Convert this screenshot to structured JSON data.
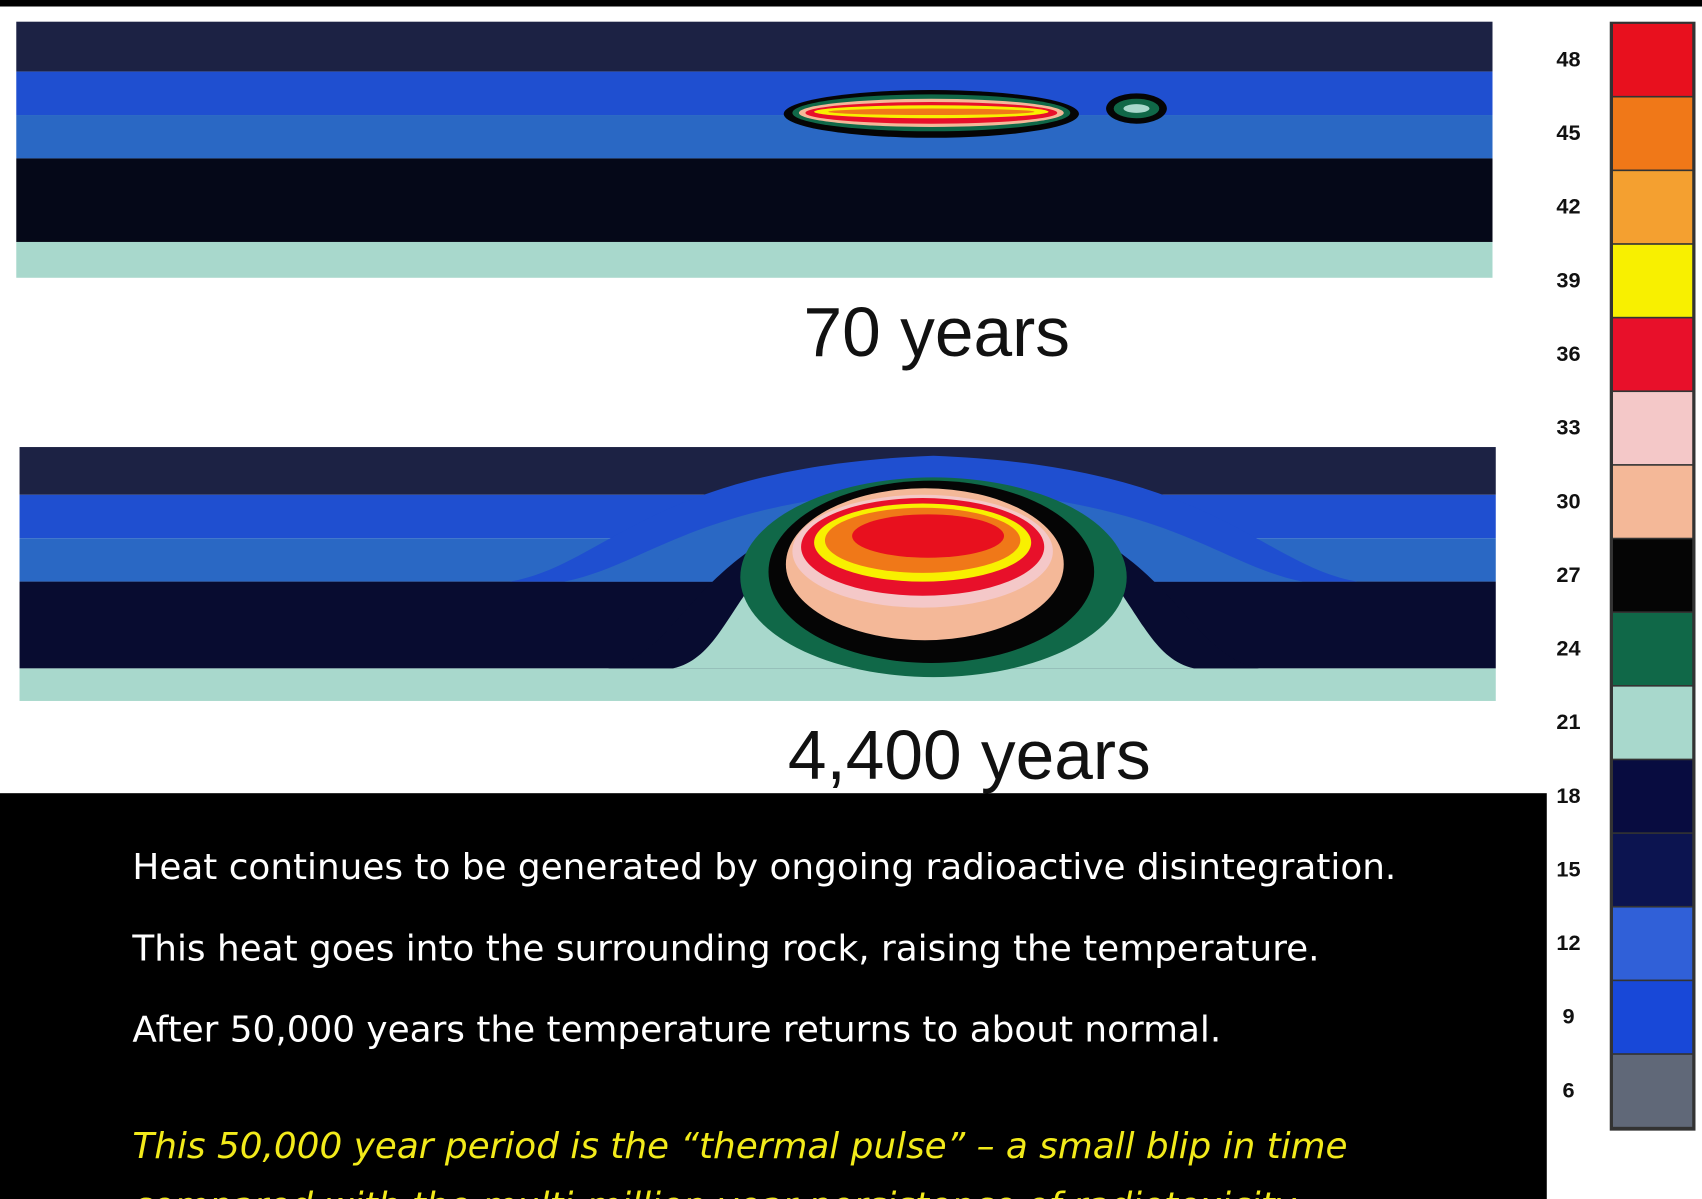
{
  "figure": {
    "panels": [
      {
        "caption": "70 years"
      },
      {
        "caption": "4,400 years"
      }
    ],
    "colorbar": {
      "levels": [
        48,
        45,
        42,
        39,
        36,
        33,
        30,
        27,
        24,
        21,
        18,
        15,
        12,
        9,
        6
      ],
      "colors": [
        "#e8101e",
        "#f07818",
        "#f4a030",
        "#f8f000",
        "#e8102a",
        "#f4c8c8",
        "#f4b898",
        "#050505",
        "#106848",
        "#a8d8cc",
        "#080c40",
        "#0c1450",
        "#3060d8",
        "#1848d8",
        "#606878"
      ]
    }
  },
  "text": {
    "lines": [
      "Heat continues to be generated by ongoing radioactive disintegration.",
      "This heat goes into the surrounding rock, raising the temperature.",
      "After 50,000 years the temperature returns to about normal."
    ],
    "note_lines": [
      "This 50,000 year period is the “thermal pulse” – a small blip in time",
      "compared with the multi-million year persistence of radiotoxicity"
    ]
  }
}
